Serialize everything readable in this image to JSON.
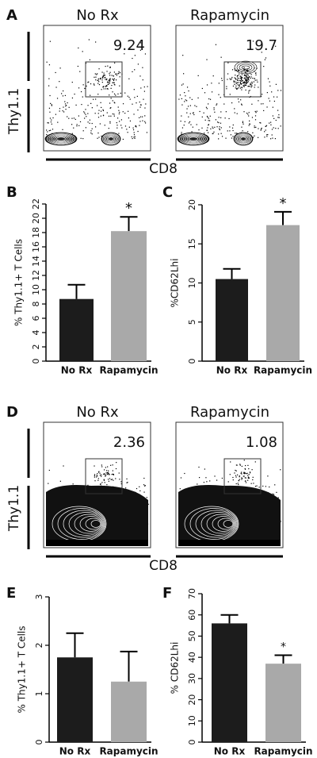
{
  "flow_panels": [
    {
      "letter": "A",
      "conditions": [
        "No Rx",
        "Rapamycin"
      ],
      "gate_values": [
        9.24,
        19.7
      ],
      "y_label": "Thy1.1",
      "x_label": "CD8"
    },
    {
      "letter": "D",
      "conditions": [
        "No Rx",
        "Rapamycin"
      ],
      "gate_values": [
        2.36,
        1.08
      ],
      "y_label": "Thy1.1",
      "x_label": "CD8"
    }
  ],
  "chart_data": [
    {
      "type": "bar",
      "panel": "B",
      "y_label": "% Thy1.1+ T Cells",
      "categories": [
        "No Rx",
        "Rapamycin"
      ],
      "values": [
        8.7,
        18.2
      ],
      "errors": [
        2.0,
        2.0
      ],
      "colors": [
        "#1c1c1c",
        "#a9a9a9"
      ],
      "significance_labels": [
        null,
        "*"
      ],
      "ylim": [
        0,
        22
      ],
      "yticks": [
        0,
        2,
        4,
        6,
        8,
        10,
        12,
        14,
        16,
        18,
        20,
        22
      ]
    },
    {
      "type": "bar",
      "panel": "C",
      "y_label": "%CD62Lhi",
      "categories": [
        "No Rx",
        "Rapamycin"
      ],
      "values": [
        10.5,
        17.4
      ],
      "errors": [
        1.3,
        1.7
      ],
      "colors": [
        "#1c1c1c",
        "#a9a9a9"
      ],
      "significance_labels": [
        null,
        "*"
      ],
      "ylim": [
        0,
        20
      ],
      "yticks": [
        0,
        5,
        10,
        15,
        20
      ]
    },
    {
      "type": "bar",
      "panel": "E",
      "y_label": "% Thy1.1+ T Cells",
      "categories": [
        "No Rx",
        "Rapamycin"
      ],
      "values": [
        1.75,
        1.25
      ],
      "errors": [
        0.5,
        0.62
      ],
      "colors": [
        "#1c1c1c",
        "#a9a9a9"
      ],
      "ylim": [
        0,
        3
      ],
      "yticks": [
        0,
        1,
        2,
        3
      ]
    },
    {
      "type": "bar",
      "panel": "F",
      "y_label": "% CD62Lhi",
      "categories": [
        "No Rx",
        "Rapamycin"
      ],
      "values": [
        56,
        37
      ],
      "errors": [
        4,
        4
      ],
      "colors": [
        "#1c1c1c",
        "#a9a9a9"
      ],
      "significance_labels": [
        null,
        "*"
      ],
      "ylim": [
        0,
        70
      ],
      "yticks": [
        0,
        10,
        20,
        30,
        40,
        50,
        60,
        70
      ]
    }
  ]
}
